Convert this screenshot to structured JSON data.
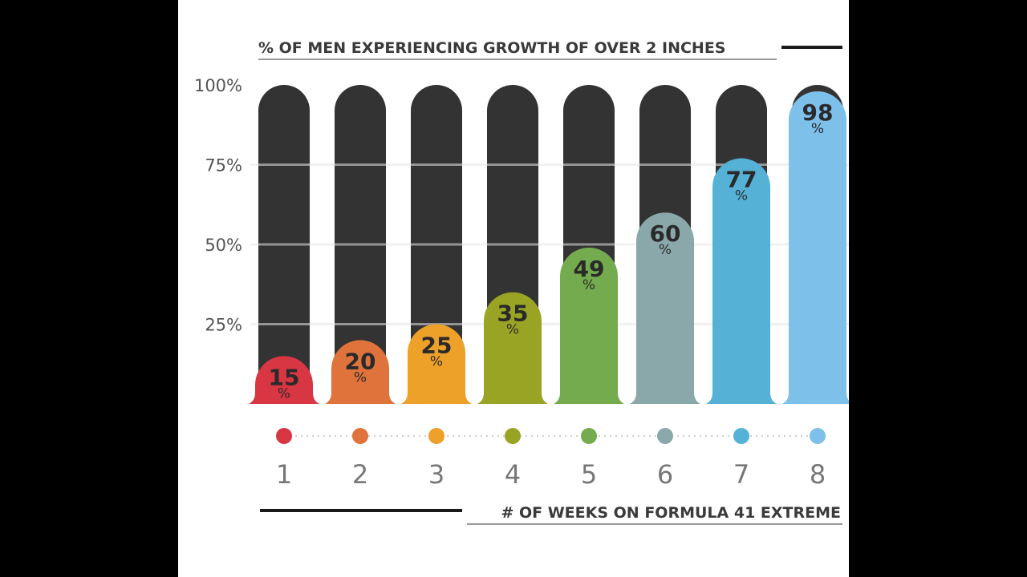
{
  "chart_data": {
    "type": "bar",
    "title": "% OF MEN EXPERIENCING GROWTH OF OVER 2 INCHES",
    "xlabel": "# OF WEEKS ON FORMULA 41 EXTREME",
    "ylabel": "",
    "categories": [
      "1",
      "2",
      "3",
      "4",
      "5",
      "6",
      "7",
      "8"
    ],
    "values": [
      15,
      20,
      25,
      35,
      49,
      60,
      77,
      98
    ],
    "value_suffix": "%",
    "ylim": [
      0,
      100
    ],
    "yticks": [
      "100%",
      "75%",
      "50%",
      "25%"
    ],
    "ytick_values": [
      100,
      75,
      50,
      25
    ],
    "grid": true,
    "colors": [
      "#d93644",
      "#e0723c",
      "#eda128",
      "#9aa424",
      "#74ab4e",
      "#8aa8aa",
      "#55b2d6",
      "#7dc0ea"
    ],
    "track_color": "#333333"
  }
}
